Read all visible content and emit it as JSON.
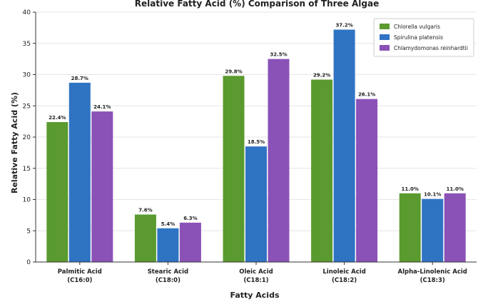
{
  "chart_data": {
    "type": "bar",
    "title": "Relative Fatty Acid (%) Comparison of Three Algae",
    "xlabel": "Fatty Acids",
    "ylabel": "Relative Fatty Acid (%)",
    "ylim": [
      0,
      40
    ],
    "yticks": [
      0,
      5,
      10,
      15,
      20,
      25,
      30,
      35,
      40
    ],
    "grid": true,
    "legend_position": "top-right",
    "categories": [
      [
        "Palmitic Acid",
        "(C16:0)"
      ],
      [
        "Stearic Acid",
        "(C18:0)"
      ],
      [
        "Oleic Acid",
        "(C18:1)"
      ],
      [
        "Linoleic Acid",
        "(C18:2)"
      ],
      [
        "Alpha-Linolenic Acid",
        "(C18:3)"
      ]
    ],
    "series": [
      {
        "name": "Chlorella vulgaris",
        "color": "#5a9a2f",
        "values": [
          22.4,
          7.6,
          29.8,
          29.2,
          11.0
        ],
        "labels": [
          "22.4%",
          "7.6%",
          "29.8%",
          "29.2%",
          "11.0%"
        ]
      },
      {
        "name": "Spirulina platensis",
        "color": "#2f73c3",
        "values": [
          28.7,
          5.4,
          18.5,
          37.2,
          10.1
        ],
        "labels": [
          "28.7%",
          "5.4%",
          "18.5%",
          "37.2%",
          "10.1%"
        ]
      },
      {
        "name": "Chlamydomonas reinhardtii",
        "color": "#8a52b6",
        "values": [
          24.1,
          6.3,
          32.5,
          26.1,
          11.0
        ],
        "labels": [
          "24.1%",
          "6.3%",
          "32.5%",
          "26.1%",
          "11.0%"
        ]
      }
    ]
  }
}
